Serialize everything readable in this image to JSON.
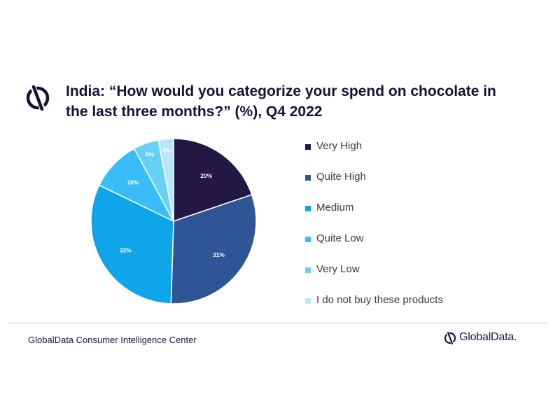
{
  "header": {
    "title_line1": "India: “How would you categorize your spend on chocolate in",
    "title_line2": "the last three months?” (%), Q4 2022",
    "icon": "globaldata-logo-icon"
  },
  "chart_data": {
    "type": "pie",
    "title": "India: “How would you categorize your spend on chocolate in the last three months?” (%), Q4 2022",
    "unit": "%",
    "categories": [
      "Very High",
      "Quite High",
      "Medium",
      "Quite Low",
      "Very Low",
      "I do not buy these products"
    ],
    "values": [
      20,
      31,
      32,
      10,
      5,
      3
    ],
    "data_labels": [
      "20%",
      "31%",
      "32%",
      "10%",
      "5%",
      "3%"
    ],
    "colors": [
      "#231843",
      "#2f5597",
      "#0ea5e9",
      "#38bdf8",
      "#67d1f5",
      "#b7e7f7"
    ],
    "start_angle": "12 o'clock",
    "direction": "clockwise",
    "legend_placement": "right"
  },
  "footer": {
    "source": "GlobalData Consumer Intelligence Center",
    "brand": "GlobalData.",
    "brand_icon": "globaldata-logo-icon"
  }
}
